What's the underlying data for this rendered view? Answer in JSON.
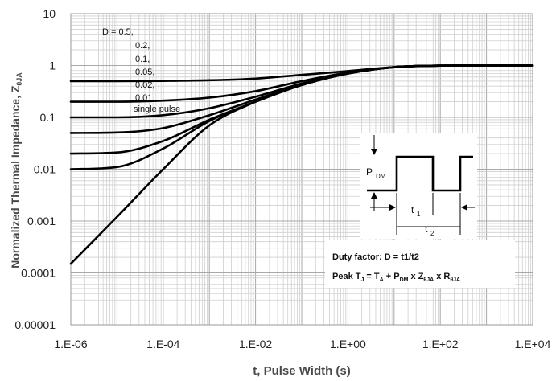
{
  "chart_data": {
    "type": "line",
    "title": "",
    "xlabel": "t, Pulse Width (s)",
    "ylabel": "Normalized Thermal Impedance, Z",
    "ylabel_subscript": "θJA",
    "xscale": "log",
    "yscale": "log",
    "xlim": [
      1e-06,
      10000
    ],
    "ylim": [
      1e-05,
      10
    ],
    "grid": true,
    "x_tick_labels": [
      "1.E-06",
      "1.E-04",
      "1.E-02",
      "1.E+00",
      "1.E+02",
      "1.E+04"
    ],
    "y_tick_labels": [
      "0.00001",
      "0.0001",
      "0.001",
      "0.01",
      "0.1",
      "1",
      "10"
    ],
    "legend_placement": "top-left",
    "x": [
      1e-06,
      1e-05,
      0.0001,
      0.001,
      0.01,
      0.1,
      1,
      10,
      100,
      1000,
      10000
    ],
    "series": [
      {
        "name": "D = 0.5,",
        "values": [
          0.5,
          0.5,
          0.505,
          0.52,
          0.56,
          0.66,
          0.78,
          0.93,
          0.995,
          1.0,
          1.0
        ]
      },
      {
        "name": "0.2,",
        "values": [
          0.2,
          0.2,
          0.21,
          0.24,
          0.32,
          0.5,
          0.73,
          0.93,
          0.995,
          1.0,
          1.0
        ]
      },
      {
        "name": "0.1,",
        "values": [
          0.1,
          0.1,
          0.11,
          0.15,
          0.25,
          0.45,
          0.71,
          0.93,
          0.995,
          1.0,
          1.0
        ]
      },
      {
        "name": "0.05,",
        "values": [
          0.05,
          0.051,
          0.062,
          0.11,
          0.22,
          0.43,
          0.7,
          0.93,
          0.995,
          1.0,
          1.0
        ]
      },
      {
        "name": "0.02,",
        "values": [
          0.02,
          0.021,
          0.035,
          0.09,
          0.2,
          0.42,
          0.7,
          0.93,
          0.995,
          1.0,
          1.0
        ]
      },
      {
        "name": "0.01",
        "values": [
          0.01,
          0.011,
          0.025,
          0.085,
          0.2,
          0.42,
          0.7,
          0.93,
          0.995,
          1.0,
          1.0
        ]
      },
      {
        "name": "single pulse",
        "values": [
          0.00015,
          0.0012,
          0.01,
          0.07,
          0.2,
          0.42,
          0.7,
          0.93,
          0.995,
          1.0,
          1.0
        ]
      }
    ],
    "annotations": {
      "pdm_label": "P",
      "pdm_sub": "DM",
      "t1_label": "t",
      "t1_sub": "1",
      "t2_label": "t",
      "t2_sub": "2",
      "duty_factor": "Duty factor: D = t1/t2",
      "peak_parts": [
        {
          "text": "Peak T",
          "sub": false
        },
        {
          "text": "J",
          "sub": true
        },
        {
          "text": " = T",
          "sub": false
        },
        {
          "text": "A",
          "sub": true
        },
        {
          "text": " + P",
          "sub": false
        },
        {
          "text": "DM",
          "sub": true
        },
        {
          "text": " x Z",
          "sub": false
        },
        {
          "text": "θJA",
          "sub": true
        },
        {
          "text": " x R",
          "sub": false
        },
        {
          "text": "θJA",
          "sub": true
        }
      ]
    },
    "colors": {
      "line": "#000000",
      "grid": "#c8c8c8",
      "axis_title": "#4a4a4a"
    }
  }
}
